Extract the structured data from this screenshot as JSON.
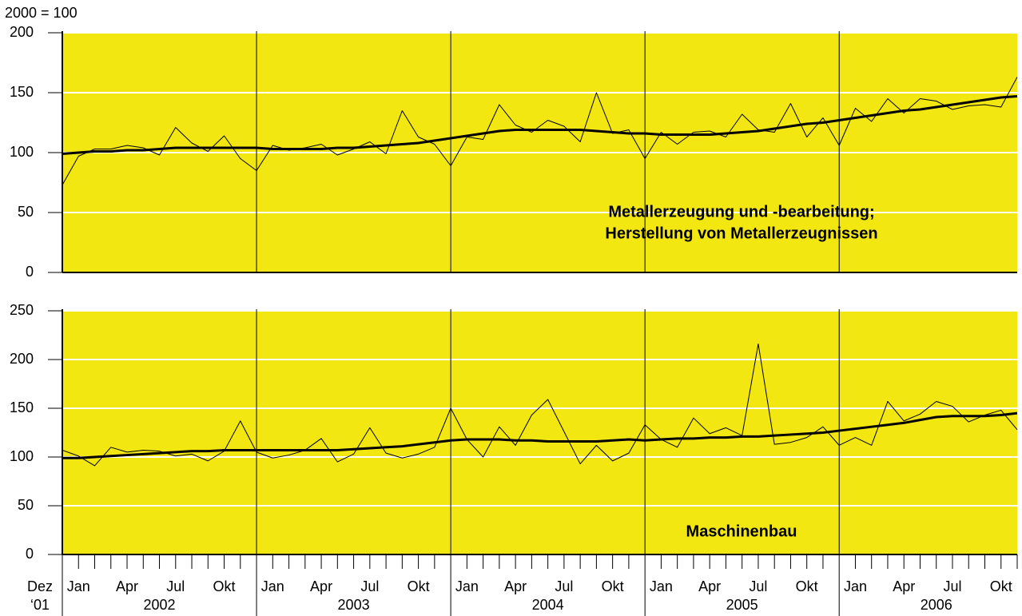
{
  "chart_data": [
    {
      "type": "line",
      "unit_label": "2000 = 100",
      "annotation": [
        "Metallerzeugung und -bearbeitung;",
        "Herstellung von Metallerzeugnissen"
      ],
      "ylim": [
        0,
        200
      ],
      "yticks": [
        0,
        50,
        100,
        150,
        200
      ],
      "grid": true,
      "background": "#f3e712",
      "series": [
        {
          "color": "#000000",
          "line_width": 1,
          "values": [
            73,
            97,
            103,
            103,
            106,
            104,
            98,
            121,
            108,
            101,
            114,
            95,
            85,
            106,
            102,
            104,
            107,
            98,
            103,
            109,
            99,
            135,
            113,
            107,
            89,
            113,
            111,
            140,
            123,
            117,
            127,
            122,
            109,
            150,
            116,
            119,
            95,
            117,
            107,
            117,
            118,
            113,
            132,
            119,
            117,
            141,
            113,
            129,
            106,
            137,
            126,
            145,
            133,
            145,
            143,
            136,
            139,
            140,
            138,
            163
          ]
        },
        {
          "color": "#000000",
          "line_width": 3,
          "values": [
            99,
            100,
            101,
            101,
            102,
            102,
            103,
            104,
            104,
            104,
            104,
            104,
            104,
            103,
            103,
            103,
            103,
            104,
            104,
            105,
            106,
            107,
            108,
            110,
            112,
            114,
            116,
            118,
            119,
            119,
            119,
            119,
            119,
            118,
            117,
            116,
            116,
            115,
            115,
            115,
            115,
            116,
            117,
            118,
            120,
            122,
            124,
            125,
            127,
            129,
            131,
            133,
            135,
            136,
            138,
            140,
            142,
            144,
            146,
            147
          ]
        }
      ]
    },
    {
      "type": "line",
      "annotation": [
        "Maschinenbau"
      ],
      "ylim": [
        0,
        250
      ],
      "yticks": [
        0,
        50,
        100,
        150,
        200,
        250
      ],
      "grid": true,
      "background": "#f3e712",
      "categories": [
        "Dez",
        "Jan",
        null,
        null,
        "Apr",
        null,
        null,
        "Jul",
        null,
        null,
        "Okt",
        null,
        null,
        "Jan",
        null,
        null,
        "Apr",
        null,
        null,
        "Jul",
        null,
        null,
        "Okt",
        null,
        null,
        "Jan",
        null,
        null,
        "Apr",
        null,
        null,
        "Jul",
        null,
        null,
        "Okt",
        null,
        null,
        "Jan",
        null,
        null,
        "Apr",
        null,
        null,
        "Jul",
        null,
        null,
        "Okt",
        null,
        null,
        "Jan",
        null,
        null,
        "Apr",
        null,
        null,
        "Jul",
        null,
        null,
        "Okt",
        null
      ],
      "start_year_label": "‘01",
      "year_labels": [
        "2002",
        "2003",
        "2004",
        "2005",
        "2006"
      ],
      "series": [
        {
          "color": "#000000",
          "line_width": 1,
          "values": [
            107,
            101,
            91,
            110,
            105,
            107,
            106,
            101,
            103,
            96,
            106,
            137,
            105,
            99,
            102,
            107,
            119,
            95,
            103,
            130,
            104,
            99,
            103,
            110,
            150,
            118,
            100,
            131,
            112,
            143,
            159,
            126,
            93,
            112,
            96,
            104,
            133,
            118,
            110,
            140,
            124,
            130,
            122,
            216,
            113,
            115,
            120,
            131,
            112,
            120,
            112,
            157,
            137,
            144,
            157,
            152,
            136,
            143,
            148,
            128
          ]
        },
        {
          "color": "#000000",
          "line_width": 3,
          "values": [
            99,
            99,
            100,
            101,
            102,
            103,
            104,
            105,
            106,
            106,
            107,
            107,
            107,
            107,
            107,
            107,
            107,
            107,
            108,
            109,
            110,
            111,
            113,
            115,
            117,
            118,
            118,
            118,
            117,
            117,
            116,
            116,
            116,
            116,
            117,
            118,
            117,
            118,
            119,
            119,
            120,
            120,
            121,
            121,
            122,
            123,
            124,
            125,
            127,
            129,
            131,
            133,
            135,
            138,
            141,
            142,
            142,
            142,
            143,
            145
          ]
        }
      ]
    }
  ]
}
